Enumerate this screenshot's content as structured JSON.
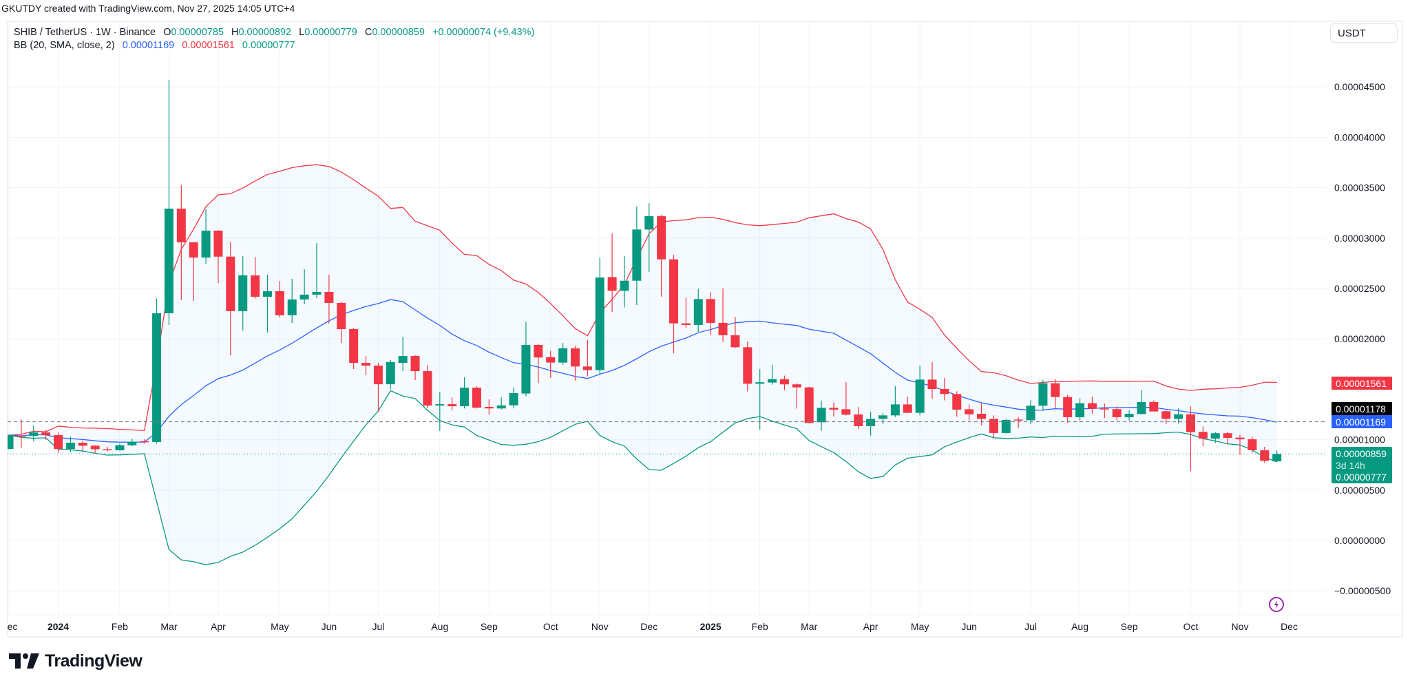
{
  "watermark": "GKUTDY created with TradingView.com, Nov 27, 2025 14:05 UTC+4",
  "legend": {
    "symbol": "SHIB / TetherUS · 1W · Binance",
    "o_label": "O",
    "o": "0.00000785",
    "h_label": "H",
    "h": "0.00000892",
    "l_label": "L",
    "l": "0.00000779",
    "c_label": "C",
    "c": "0.00000859",
    "change": "+0.00000074 (+9.43%)",
    "indicator": "BB (20, SMA, close, 2)",
    "bb_basis": "0.00001169",
    "bb_upper": "0.00001561",
    "bb_lower": "0.00000777"
  },
  "currency_button": "USDT",
  "price_markers": {
    "upper_band": "0.00001561",
    "line_price": "0.00001178",
    "basis": "0.00001169",
    "last_price": "0.00000859",
    "countdown": "3d 14h",
    "lower_band": "0.00000777"
  },
  "logo": "TradingView",
  "icons": {
    "alert": "lightning-icon",
    "logo": "tradingview-logo-icon"
  },
  "colors": {
    "up": "#089981",
    "down": "#F23645",
    "basis": "#2962FF",
    "upper": "#F23645",
    "lower": "#089981",
    "band_fill": "#2196F3",
    "line_price_bg": "#000000",
    "alert_icon": "#9C27B0"
  },
  "chart_data": {
    "type": "candlestick",
    "symbol": "SHIB / TetherUS",
    "interval": "1W",
    "ylim": [
      -5.8e-06,
      4.72e-05
    ],
    "grid": true,
    "y_ticks": [
      {
        "value": 4.5e-05,
        "label": "0.00004500"
      },
      {
        "value": 4e-05,
        "label": "0.00004000"
      },
      {
        "value": 3.5e-05,
        "label": "0.00003500"
      },
      {
        "value": 3e-05,
        "label": "0.00003000"
      },
      {
        "value": 2.5e-05,
        "label": "0.00002500"
      },
      {
        "value": 2e-05,
        "label": "0.00002000"
      },
      {
        "value": 1e-05,
        "label": "0.00001000"
      },
      {
        "value": 5e-06,
        "label": "0.00000500"
      },
      {
        "value": 0,
        "label": "0.00000000"
      },
      {
        "value": -5e-06,
        "label": "−0.00000500"
      }
    ],
    "x_ticks": [
      {
        "date": "2023-12-04",
        "label": "Dec"
      },
      {
        "date": "2024-01-01",
        "label": "2024"
      },
      {
        "date": "2024-02-05",
        "label": "Feb"
      },
      {
        "date": "2024-03-04",
        "label": "Mar"
      },
      {
        "date": "2024-04-01",
        "label": "Apr"
      },
      {
        "date": "2024-05-06",
        "label": "May"
      },
      {
        "date": "2024-06-03",
        "label": "Jun"
      },
      {
        "date": "2024-07-01",
        "label": "Jul"
      },
      {
        "date": "2024-08-05",
        "label": "Aug"
      },
      {
        "date": "2024-09-02",
        "label": "Sep"
      },
      {
        "date": "2024-10-07",
        "label": "Oct"
      },
      {
        "date": "2024-11-04",
        "label": "Nov"
      },
      {
        "date": "2024-12-02",
        "label": "Dec"
      },
      {
        "date": "2025-01-06",
        "label": "2025"
      },
      {
        "date": "2025-02-03",
        "label": "Feb"
      },
      {
        "date": "2025-03-03",
        "label": "Mar"
      },
      {
        "date": "2025-04-07",
        "label": "Apr"
      },
      {
        "date": "2025-05-05",
        "label": "May"
      },
      {
        "date": "2025-06-02",
        "label": "Jun"
      },
      {
        "date": "2025-07-07",
        "label": "Jul"
      },
      {
        "date": "2025-08-04",
        "label": "Aug"
      },
      {
        "date": "2025-09-01",
        "label": "Sep"
      },
      {
        "date": "2025-10-06",
        "label": "Oct"
      },
      {
        "date": "2025-11-03",
        "label": "Nov"
      },
      {
        "date": "2025-12-01",
        "label": "Dec"
      }
    ],
    "indicator": {
      "name": "BB",
      "length": 20,
      "ma": "SMA",
      "source": "close",
      "mult": 2
    },
    "line_price": 1.178e-05,
    "candles_columns": [
      "date",
      "open",
      "high",
      "low",
      "close"
    ],
    "candles": [
      [
        "2023-12-04",
        9.08e-06,
        1.05e-05,
        9.05e-06,
        1.045e-05
      ],
      [
        "2023-12-11",
        1.04e-05,
        1.2e-05,
        9.15e-06,
        1.03e-05
      ],
      [
        "2023-12-18",
        1.038e-05,
        1.14e-05,
        9.85e-06,
        1.072e-05
      ],
      [
        "2023-12-25",
        1.072e-05,
        1.1e-05,
        1e-05,
        1.045e-05
      ],
      [
        "2024-01-01",
        1.045e-05,
        1.07e-05,
        8.7e-06,
        9.08e-06
      ],
      [
        "2024-01-08",
        9.08e-06,
        1.03e-05,
        8.75e-06,
        9.7e-06
      ],
      [
        "2024-01-15",
        9.7e-06,
        9.9e-06,
        8.9e-06,
        9.4e-06
      ],
      [
        "2024-01-22",
        9.4e-06,
        9.45e-06,
        8.7e-06,
        9.05e-06
      ],
      [
        "2024-01-29",
        9.05e-06,
        9.3e-06,
        8.85e-06,
        8.95e-06
      ],
      [
        "2024-02-05",
        8.95e-06,
        9.6e-06,
        8.9e-06,
        9.45e-06
      ],
      [
        "2024-02-12",
        9.45e-06,
        1.01e-05,
        9.35e-06,
        9.8e-06
      ],
      [
        "2024-02-19",
        9.85e-06,
        1.005e-05,
        9.6e-06,
        9.75e-06
      ],
      [
        "2024-02-26",
        9.77e-06,
        2.398e-05,
        9.6e-06,
        2.254e-05
      ],
      [
        "2024-03-04",
        2.254e-05,
        4.57e-05,
        2.138e-05,
        3.292e-05
      ],
      [
        "2024-03-11",
        3.292e-05,
        3.524e-05,
        2.384e-05,
        2.958e-05
      ],
      [
        "2024-03-18",
        2.958e-05,
        2.96e-05,
        2.377e-05,
        2.807e-05
      ],
      [
        "2024-03-25",
        2.807e-05,
        3.285e-05,
        2.746e-05,
        3.074e-05
      ],
      [
        "2024-04-01",
        3.074e-05,
        3.08e-05,
        2.553e-05,
        2.816e-05
      ],
      [
        "2024-04-08",
        2.816e-05,
        2.958e-05,
        1.837e-05,
        2.275e-05
      ],
      [
        "2024-04-15",
        2.275e-05,
        2.821e-05,
        2.083e-05,
        2.63e-05
      ],
      [
        "2024-04-22",
        2.63e-05,
        2.814e-05,
        2.4e-05,
        2.418e-05
      ],
      [
        "2024-04-29",
        2.418e-05,
        2.637e-05,
        2.063e-05,
        2.473e-05
      ],
      [
        "2024-05-06",
        2.473e-05,
        2.575e-05,
        2.213e-05,
        2.234e-05
      ],
      [
        "2024-05-13",
        2.234e-05,
        2.596e-05,
        2.158e-05,
        2.391e-05
      ],
      [
        "2024-05-20",
        2.391e-05,
        2.691e-05,
        2.343e-05,
        2.439e-05
      ],
      [
        "2024-05-27",
        2.439e-05,
        2.951e-05,
        2.404e-05,
        2.466e-05
      ],
      [
        "2024-06-03",
        2.466e-05,
        2.637e-05,
        2.152e-05,
        2.357e-05
      ],
      [
        "2024-06-10",
        2.357e-05,
        2.37e-05,
        1.96e-05,
        2.097e-05
      ],
      [
        "2024-06-17",
        2.097e-05,
        2.11e-05,
        1.701e-05,
        1.762e-05
      ],
      [
        "2024-06-24",
        1.762e-05,
        1.83e-05,
        1.639e-05,
        1.735e-05
      ],
      [
        "2024-07-01",
        1.735e-05,
        1.76e-05,
        1.277e-05,
        1.55e-05
      ],
      [
        "2024-07-08",
        1.55e-05,
        1.79e-05,
        1.5e-05,
        1.77e-05
      ],
      [
        "2024-07-15",
        1.762e-05,
        2.022e-05,
        1.68e-05,
        1.83e-05
      ],
      [
        "2024-07-22",
        1.83e-05,
        1.84e-05,
        1.591e-05,
        1.68e-05
      ],
      [
        "2024-07-29",
        1.68e-05,
        1.74e-05,
        1.311e-05,
        1.339e-05
      ],
      [
        "2024-08-05",
        1.339e-05,
        1.475e-05,
        1.086e-05,
        1.352e-05
      ],
      [
        "2024-08-12",
        1.352e-05,
        1.42e-05,
        1.29e-05,
        1.332e-05
      ],
      [
        "2024-08-19",
        1.332e-05,
        1.619e-05,
        1.31e-05,
        1.516e-05
      ],
      [
        "2024-08-26",
        1.516e-05,
        1.53e-05,
        1.31e-05,
        1.318e-05
      ],
      [
        "2024-09-02",
        1.325e-05,
        1.4e-05,
        1.25e-05,
        1.31e-05
      ],
      [
        "2024-09-09",
        1.31e-05,
        1.42e-05,
        1.3e-05,
        1.34e-05
      ],
      [
        "2024-09-16",
        1.341e-05,
        1.519e-05,
        1.31e-05,
        1.462e-05
      ],
      [
        "2024-09-23",
        1.458e-05,
        2.17e-05,
        1.43e-05,
        1.94e-05
      ],
      [
        "2024-09-30",
        1.94e-05,
        1.95e-05,
        1.56e-05,
        1.815e-05
      ],
      [
        "2024-10-07",
        1.819e-05,
        1.883e-05,
        1.614e-05,
        1.765e-05
      ],
      [
        "2024-10-14",
        1.765e-05,
        1.958e-05,
        1.742e-05,
        1.906e-05
      ],
      [
        "2024-10-21",
        1.906e-05,
        1.93e-05,
        1.587e-05,
        1.726e-05
      ],
      [
        "2024-10-28",
        1.726e-05,
        1.988e-05,
        1.628e-05,
        1.69e-05
      ],
      [
        "2024-11-04",
        1.69e-05,
        2.805e-05,
        1.651e-05,
        2.609e-05
      ],
      [
        "2024-11-11",
        2.613e-05,
        3.047e-05,
        2.266e-05,
        2.477e-05
      ],
      [
        "2024-11-18",
        2.477e-05,
        2.822e-05,
        2.312e-05,
        2.577e-05
      ],
      [
        "2024-11-25",
        2.577e-05,
        3.313e-05,
        2.335e-05,
        3.085e-05
      ],
      [
        "2024-12-02",
        3.085e-05,
        3.347e-05,
        2.664e-05,
        3.217e-05
      ],
      [
        "2024-12-09",
        3.217e-05,
        3.23e-05,
        2.42e-05,
        2.789e-05
      ],
      [
        "2024-12-16",
        2.789e-05,
        2.835e-05,
        1.856e-05,
        2.154e-05
      ],
      [
        "2024-12-23",
        2.154e-05,
        2.41e-05,
        2.104e-05,
        2.138e-05
      ],
      [
        "2024-12-30",
        2.138e-05,
        2.497e-05,
        2.07e-05,
        2.395e-05
      ],
      [
        "2025-01-06",
        2.395e-05,
        2.466e-05,
        2.038e-05,
        2.159e-05
      ],
      [
        "2025-01-13",
        2.159e-05,
        2.502e-05,
        1.97e-05,
        2.036e-05
      ],
      [
        "2025-01-20",
        2.036e-05,
        2.22e-05,
        1.908e-05,
        1.917e-05
      ],
      [
        "2025-01-27",
        1.917e-05,
        1.975e-05,
        1.478e-05,
        1.555e-05
      ],
      [
        "2025-02-03",
        1.555e-05,
        1.701e-05,
        1.1e-05,
        1.57e-05
      ],
      [
        "2025-02-10",
        1.567e-05,
        1.742e-05,
        1.545e-05,
        1.601e-05
      ],
      [
        "2025-02-17",
        1.601e-05,
        1.635e-05,
        1.492e-05,
        1.549e-05
      ],
      [
        "2025-02-24",
        1.549e-05,
        1.56e-05,
        1.309e-05,
        1.519e-05
      ],
      [
        "2025-03-03",
        1.519e-05,
        1.525e-05,
        1.16e-05,
        1.166e-05
      ],
      [
        "2025-03-10",
        1.173e-05,
        1.387e-05,
        1.088e-05,
        1.316e-05
      ],
      [
        "2025-03-17",
        1.316e-05,
        1.368e-05,
        1.23e-05,
        1.298e-05
      ],
      [
        "2025-03-24",
        1.302e-05,
        1.571e-05,
        1.24e-05,
        1.248e-05
      ],
      [
        "2025-03-31",
        1.25e-05,
        1.325e-05,
        1.109e-05,
        1.134e-05
      ],
      [
        "2025-04-07",
        1.134e-05,
        1.277e-05,
        1.04e-05,
        1.207e-05
      ],
      [
        "2025-04-14",
        1.207e-05,
        1.264e-05,
        1.154e-05,
        1.241e-05
      ],
      [
        "2025-04-21",
        1.241e-05,
        1.53e-05,
        1.225e-05,
        1.35e-05
      ],
      [
        "2025-04-28",
        1.35e-05,
        1.427e-05,
        1.266e-05,
        1.266e-05
      ],
      [
        "2025-05-05",
        1.266e-05,
        1.735e-05,
        1.24e-05,
        1.596e-05
      ],
      [
        "2025-05-12",
        1.596e-05,
        1.769e-05,
        1.405e-05,
        1.503e-05
      ],
      [
        "2025-05-19",
        1.503e-05,
        1.612e-05,
        1.39e-05,
        1.453e-05
      ],
      [
        "2025-05-26",
        1.453e-05,
        1.48e-05,
        1.23e-05,
        1.298e-05
      ],
      [
        "2025-06-02",
        1.302e-05,
        1.35e-05,
        1.193e-05,
        1.252e-05
      ],
      [
        "2025-06-09",
        1.257e-05,
        1.361e-05,
        1.143e-05,
        1.207e-05
      ],
      [
        "2025-06-16",
        1.207e-05,
        1.241e-05,
        1.013e-05,
        1.066e-05
      ],
      [
        "2025-06-23",
        1.066e-05,
        1.207e-05,
        1.06e-05,
        1.195e-05
      ],
      [
        "2025-06-30",
        1.2e-05,
        1.222e-05,
        1.116e-05,
        1.193e-05
      ],
      [
        "2025-07-07",
        1.193e-05,
        1.393e-05,
        1.154e-05,
        1.337e-05
      ],
      [
        "2025-07-14",
        1.337e-05,
        1.594e-05,
        1.286e-05,
        1.56e-05
      ],
      [
        "2025-07-21",
        1.56e-05,
        1.6e-05,
        1.314e-05,
        1.423e-05
      ],
      [
        "2025-07-28",
        1.423e-05,
        1.446e-05,
        1.168e-05,
        1.223e-05
      ],
      [
        "2025-08-04",
        1.223e-05,
        1.412e-05,
        1.19e-05,
        1.362e-05
      ],
      [
        "2025-08-11",
        1.362e-05,
        1.428e-05,
        1.259e-05,
        1.307e-05
      ],
      [
        "2025-08-18",
        1.31e-05,
        1.359e-05,
        1.214e-05,
        1.303e-05
      ],
      [
        "2025-08-25",
        1.303e-05,
        1.33e-05,
        1.191e-05,
        1.223e-05
      ],
      [
        "2025-09-01",
        1.223e-05,
        1.29e-05,
        1.19e-05,
        1.257e-05
      ],
      [
        "2025-09-08",
        1.255e-05,
        1.492e-05,
        1.25e-05,
        1.373e-05
      ],
      [
        "2025-09-15",
        1.373e-05,
        1.389e-05,
        1.28e-05,
        1.28e-05
      ],
      [
        "2025-09-22",
        1.282e-05,
        1.29e-05,
        1.157e-05,
        1.207e-05
      ],
      [
        "2025-09-29",
        1.207e-05,
        1.31e-05,
        1.16e-05,
        1.252e-05
      ],
      [
        "2025-10-06",
        1.252e-05,
        1.33e-05,
        6.9e-06,
        1.075e-05
      ],
      [
        "2025-10-13",
        1.077e-05,
        1.132e-05,
        9.34e-06,
        1.011e-05
      ],
      [
        "2025-10-20",
        1.011e-05,
        1.077e-05,
        9.66e-06,
        1.064e-05
      ],
      [
        "2025-10-27",
        1.064e-05,
        1.08e-05,
        9.5e-06,
        1.018e-05
      ],
      [
        "2025-11-03",
        1.02e-05,
        1.048e-05,
        8.49e-06,
        1.004e-05
      ],
      [
        "2025-11-10",
        1.004e-05,
        1.03e-05,
        8.7e-06,
        8.95e-06
      ],
      [
        "2025-11-17",
        8.95e-06,
        9.29e-06,
        7.73e-06,
        7.9e-06
      ],
      [
        "2025-11-24",
        7.85e-06,
        8.92e-06,
        7.79e-06,
        8.59e-06
      ]
    ]
  }
}
